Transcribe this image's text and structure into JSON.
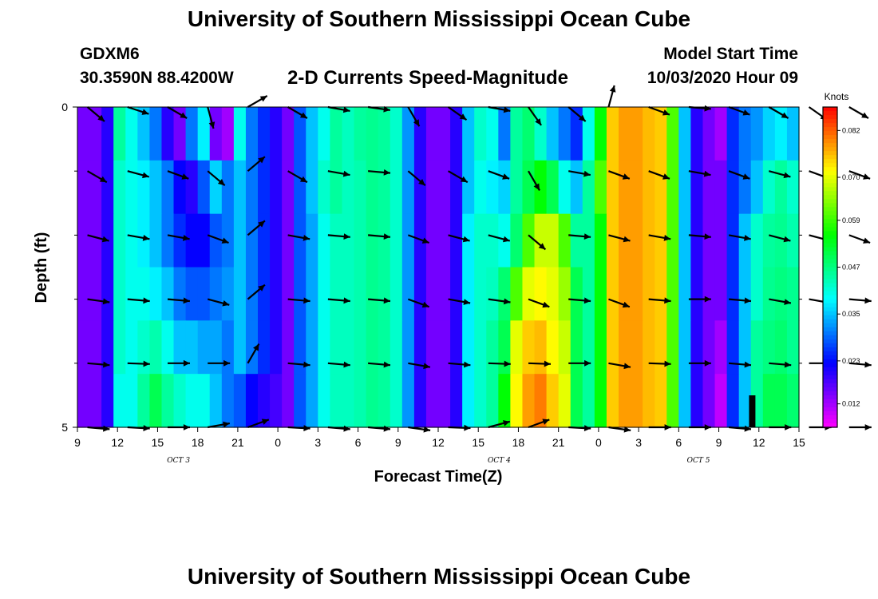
{
  "header": {
    "title": "University of Southern Mississippi Ocean Cube",
    "station_id": "GDXM6",
    "coordinates": "30.3590N 88.4200W",
    "plot_title": "2-D Currents Speed-Magnitude",
    "model_start_label": "Model Start Time",
    "model_start_value": "10/03/2020 Hour 09"
  },
  "footer": {
    "title": "University of Southern Mississippi Ocean Cube"
  },
  "chart_data": {
    "type": "heatmap",
    "title": "2-D Currents Speed-Magnitude",
    "xlabel": "Forecast Time(Z)",
    "ylabel": "Depth (ft)",
    "x_ticks": [
      "9",
      "12",
      "15",
      "18",
      "21",
      "0",
      "3",
      "6",
      "9",
      "12",
      "15",
      "18",
      "21",
      "0",
      "3",
      "6",
      "9",
      "12",
      "15"
    ],
    "day_labels": [
      "OCT 3",
      "OCT 4",
      "OCT 5"
    ],
    "y_ticks": [
      "0",
      "5"
    ],
    "ylim": [
      0,
      5
    ],
    "colorbar": {
      "unit": "Knots",
      "vmin": 0.006,
      "vmax": 0.088,
      "ticks": [
        "0.082",
        "0.070",
        "0.059",
        "0.047",
        "0.035",
        "0.023",
        "0.012"
      ],
      "tick_values": [
        0.082,
        0.07,
        0.059,
        0.047,
        0.035,
        0.023,
        0.012
      ]
    },
    "speed_by_layer": [
      [
        0.015,
        0.015,
        0.02,
        0.045,
        0.04,
        0.035,
        0.03,
        0.02,
        0.015,
        0.03,
        0.038,
        0.015,
        0.012,
        0.04,
        0.03,
        0.025,
        0.02,
        0.015,
        0.028,
        0.035,
        0.04,
        0.045,
        0.043,
        0.045,
        0.046,
        0.045,
        0.042,
        0.032,
        0.02,
        0.015,
        0.015,
        0.02,
        0.035,
        0.042,
        0.04,
        0.03,
        0.045,
        0.048,
        0.042,
        0.035,
        0.03,
        0.025,
        0.04,
        0.055,
        0.075,
        0.078,
        0.078,
        0.076,
        0.075,
        0.06,
        0.035,
        0.02,
        0.015,
        0.012,
        0.025,
        0.03,
        0.032,
        0.036,
        0.038,
        0.035
      ],
      [
        0.015,
        0.015,
        0.02,
        0.042,
        0.04,
        0.038,
        0.035,
        0.03,
        0.022,
        0.02,
        0.028,
        0.036,
        0.03,
        0.035,
        0.03,
        0.025,
        0.02,
        0.015,
        0.028,
        0.035,
        0.042,
        0.045,
        0.043,
        0.044,
        0.046,
        0.045,
        0.042,
        0.032,
        0.02,
        0.015,
        0.015,
        0.02,
        0.035,
        0.04,
        0.038,
        0.036,
        0.045,
        0.05,
        0.055,
        0.05,
        0.04,
        0.035,
        0.045,
        0.06,
        0.075,
        0.078,
        0.078,
        0.076,
        0.075,
        0.06,
        0.035,
        0.02,
        0.015,
        0.015,
        0.025,
        0.03,
        0.035,
        0.042,
        0.045,
        0.042
      ],
      [
        0.015,
        0.015,
        0.02,
        0.042,
        0.04,
        0.038,
        0.035,
        0.03,
        0.025,
        0.022,
        0.022,
        0.028,
        0.03,
        0.035,
        0.03,
        0.025,
        0.02,
        0.015,
        0.028,
        0.033,
        0.04,
        0.043,
        0.043,
        0.044,
        0.046,
        0.045,
        0.042,
        0.032,
        0.02,
        0.015,
        0.015,
        0.02,
        0.038,
        0.042,
        0.042,
        0.04,
        0.048,
        0.06,
        0.068,
        0.068,
        0.06,
        0.045,
        0.045,
        0.055,
        0.075,
        0.078,
        0.078,
        0.076,
        0.075,
        0.06,
        0.035,
        0.02,
        0.015,
        0.015,
        0.025,
        0.035,
        0.042,
        0.045,
        0.046,
        0.044
      ],
      [
        0.015,
        0.015,
        0.02,
        0.042,
        0.04,
        0.04,
        0.038,
        0.035,
        0.03,
        0.028,
        0.028,
        0.03,
        0.032,
        0.035,
        0.03,
        0.025,
        0.02,
        0.015,
        0.028,
        0.033,
        0.04,
        0.043,
        0.043,
        0.044,
        0.046,
        0.045,
        0.042,
        0.032,
        0.02,
        0.015,
        0.015,
        0.02,
        0.038,
        0.042,
        0.043,
        0.048,
        0.06,
        0.07,
        0.072,
        0.07,
        0.065,
        0.05,
        0.045,
        0.055,
        0.075,
        0.078,
        0.078,
        0.076,
        0.075,
        0.06,
        0.035,
        0.02,
        0.015,
        0.015,
        0.025,
        0.035,
        0.042,
        0.046,
        0.047,
        0.046
      ],
      [
        0.015,
        0.015,
        0.02,
        0.042,
        0.04,
        0.042,
        0.044,
        0.04,
        0.035,
        0.035,
        0.033,
        0.033,
        0.03,
        0.035,
        0.03,
        0.025,
        0.02,
        0.015,
        0.028,
        0.033,
        0.04,
        0.043,
        0.043,
        0.044,
        0.046,
        0.045,
        0.042,
        0.032,
        0.02,
        0.015,
        0.015,
        0.02,
        0.038,
        0.042,
        0.045,
        0.05,
        0.07,
        0.075,
        0.076,
        0.072,
        0.068,
        0.05,
        0.045,
        0.055,
        0.075,
        0.078,
        0.078,
        0.076,
        0.075,
        0.06,
        0.035,
        0.02,
        0.015,
        0.012,
        0.025,
        0.035,
        0.045,
        0.047,
        0.048,
        0.046
      ],
      [
        0.015,
        0.015,
        0.02,
        0.04,
        0.04,
        0.045,
        0.05,
        0.045,
        0.042,
        0.04,
        0.04,
        0.035,
        0.03,
        0.028,
        0.022,
        0.02,
        0.018,
        0.015,
        0.028,
        0.033,
        0.04,
        0.043,
        0.043,
        0.044,
        0.046,
        0.045,
        0.042,
        0.032,
        0.02,
        0.015,
        0.015,
        0.02,
        0.038,
        0.042,
        0.045,
        0.055,
        0.072,
        0.078,
        0.08,
        0.075,
        0.07,
        0.05,
        0.045,
        0.055,
        0.075,
        0.078,
        0.078,
        0.076,
        0.075,
        0.06,
        0.035,
        0.02,
        0.015,
        0.01,
        0.025,
        0.035,
        0.045,
        0.05,
        0.05,
        0.048
      ]
    ],
    "arrow_dirs_deg": [
      [
        40,
        18,
        30,
        75,
        -30,
        30,
        10,
        8,
        60,
        35,
        10,
        55,
        40,
        -75
      ],
      [
        30,
        15,
        20,
        40,
        -40,
        30,
        10,
        5,
        40,
        30,
        20,
        60,
        10,
        20
      ],
      [
        15,
        10,
        10,
        20,
        -40,
        10,
        5,
        5,
        20,
        15,
        15,
        40,
        5,
        15
      ],
      [
        8,
        5,
        5,
        15,
        -40,
        5,
        5,
        5,
        20,
        10,
        8,
        20,
        5,
        20
      ],
      [
        5,
        2,
        0,
        0,
        -60,
        5,
        5,
        5,
        10,
        5,
        2,
        2,
        0,
        10
      ],
      [
        5,
        3,
        0,
        -10,
        -20,
        3,
        5,
        5,
        8,
        2,
        -15,
        -20,
        3,
        8
      ]
    ],
    "arrow_hours": [
      9.75,
      12.75,
      15.75,
      18.75,
      21.75,
      24.75,
      27.75,
      30.75,
      33.75,
      36.75,
      39.75,
      42.75,
      45.75,
      48.75
    ]
  },
  "chart_layer2": {
    "arrow_dirs_deg_cont": [
      [
        20,
        5,
        20,
        30,
        35,
        30
      ],
      [
        20,
        10,
        20,
        15,
        20,
        20
      ],
      [
        10,
        5,
        10,
        15,
        15,
        20
      ],
      [
        5,
        0,
        5,
        10,
        10,
        5
      ],
      [
        2,
        0,
        5,
        5,
        0,
        5
      ],
      [
        0,
        0,
        5,
        0,
        0,
        0
      ]
    ],
    "arrow_hours_cont": [
      51.75,
      54.75,
      57.75,
      60.75,
      63.75,
      66.75
    ]
  }
}
